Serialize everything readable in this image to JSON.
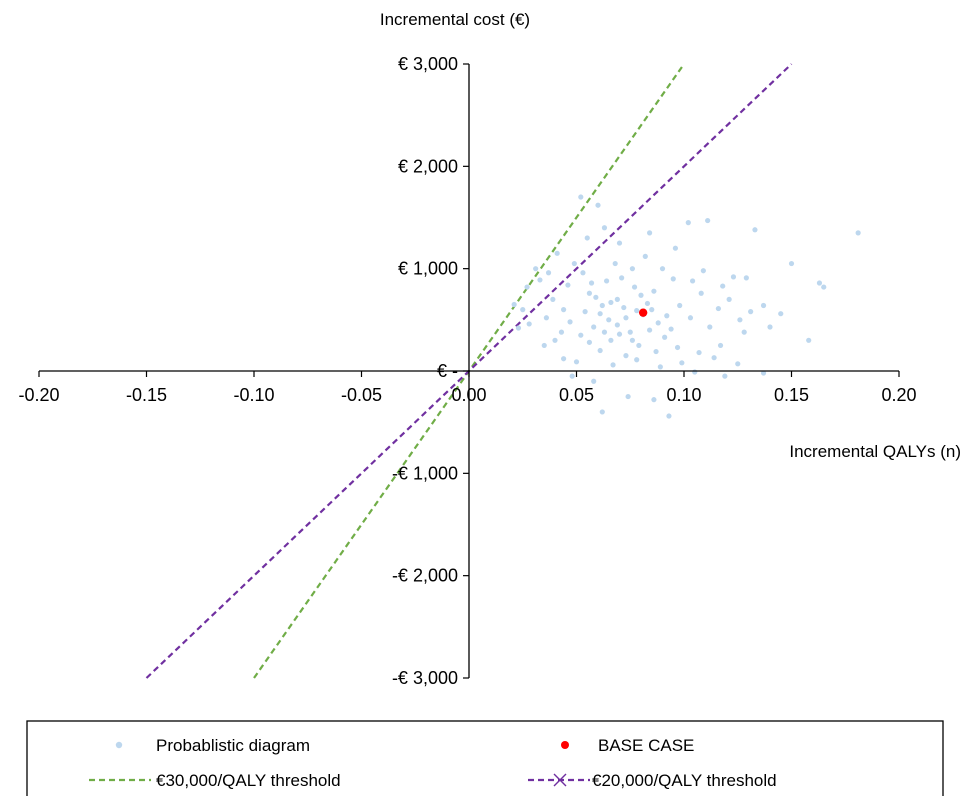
{
  "chart_data": {
    "type": "scatter",
    "xlabel": "Incremental QALYs (n)",
    "ylabel": "Incremental cost (€)",
    "xlim": [
      -0.2,
      0.2
    ],
    "ylim": [
      -3000,
      3000
    ],
    "x_ticks": [
      -0.2,
      -0.15,
      -0.1,
      -0.05,
      0.0,
      0.05,
      0.1,
      0.15,
      0.2
    ],
    "x_tick_labels": [
      "-0.20",
      "-0.15",
      "-0.10",
      "-0.05",
      "0.00",
      "0.05",
      "0.10",
      "0.15",
      "0.20"
    ],
    "y_ticks": [
      -3000,
      -2000,
      -1000,
      0,
      1000,
      2000,
      3000
    ],
    "y_tick_labels": [
      "-€ 3,000",
      "-€ 2,000",
      "-€ 1,000",
      "€ -",
      "€ 1,000",
      "€ 2,000",
      "€ 3,000"
    ],
    "grid": false,
    "legend_placement": "bottom",
    "series": [
      {
        "name": "Probablistic diagram",
        "kind": "scatter",
        "color": "#bdd7ee",
        "points": [
          [
            0.065,
            500
          ],
          [
            0.072,
            620
          ],
          [
            0.058,
            430
          ],
          [
            0.081,
            550
          ],
          [
            0.069,
            700
          ],
          [
            0.075,
            380
          ],
          [
            0.062,
            640
          ],
          [
            0.088,
            470
          ],
          [
            0.054,
            580
          ],
          [
            0.077,
            820
          ],
          [
            0.066,
            300
          ],
          [
            0.071,
            910
          ],
          [
            0.083,
            660
          ],
          [
            0.059,
            720
          ],
          [
            0.092,
            540
          ],
          [
            0.047,
            480
          ],
          [
            0.079,
            250
          ],
          [
            0.068,
            1050
          ],
          [
            0.061,
            200
          ],
          [
            0.086,
            780
          ],
          [
            0.073,
            150
          ],
          [
            0.057,
            860
          ],
          [
            0.094,
            410
          ],
          [
            0.052,
            350
          ],
          [
            0.098,
            640
          ],
          [
            0.044,
            600
          ],
          [
            0.103,
            520
          ],
          [
            0.039,
            700
          ],
          [
            0.108,
            760
          ],
          [
            0.036,
            520
          ],
          [
            0.112,
            430
          ],
          [
            0.033,
            890
          ],
          [
            0.116,
            610
          ],
          [
            0.028,
            460
          ],
          [
            0.121,
            700
          ],
          [
            0.025,
            600
          ],
          [
            0.126,
            500
          ],
          [
            0.031,
            1000
          ],
          [
            0.129,
            910
          ],
          [
            0.041,
            1150
          ],
          [
            0.096,
            1200
          ],
          [
            0.055,
            1300
          ],
          [
            0.084,
            1350
          ],
          [
            0.063,
            1400
          ],
          [
            0.102,
            1450
          ],
          [
            0.07,
            1250
          ],
          [
            0.049,
            1050
          ],
          [
            0.09,
            1000
          ],
          [
            0.06,
            1620
          ],
          [
            0.052,
            1700
          ],
          [
            0.111,
            1470
          ],
          [
            0.133,
            1380
          ],
          [
            0.15,
            1050
          ],
          [
            0.163,
            860
          ],
          [
            0.165,
            820
          ],
          [
            0.181,
            1350
          ],
          [
            0.158,
            300
          ],
          [
            0.145,
            560
          ],
          [
            0.14,
            430
          ],
          [
            0.137,
            640
          ],
          [
            0.048,
            -50
          ],
          [
            0.058,
            -100
          ],
          [
            0.062,
            -400
          ],
          [
            0.074,
            -250
          ],
          [
            0.086,
            -280
          ],
          [
            0.093,
            -440
          ],
          [
            0.105,
            -10
          ],
          [
            0.119,
            -50
          ],
          [
            0.137,
            -20
          ],
          [
            0.044,
            120
          ],
          [
            0.05,
            90
          ],
          [
            0.067,
            60
          ],
          [
            0.078,
            110
          ],
          [
            0.089,
            40
          ],
          [
            0.099,
            80
          ],
          [
            0.114,
            130
          ],
          [
            0.125,
            70
          ],
          [
            0.04,
            300
          ],
          [
            0.035,
            250
          ],
          [
            0.023,
            420
          ],
          [
            0.021,
            650
          ],
          [
            0.027,
            820
          ],
          [
            0.037,
            960
          ],
          [
            0.046,
            840
          ],
          [
            0.053,
            960
          ],
          [
            0.064,
            880
          ],
          [
            0.076,
            1000
          ],
          [
            0.082,
            1120
          ],
          [
            0.095,
            900
          ],
          [
            0.104,
            880
          ],
          [
            0.109,
            980
          ],
          [
            0.118,
            830
          ],
          [
            0.123,
            920
          ],
          [
            0.131,
            580
          ],
          [
            0.128,
            380
          ],
          [
            0.117,
            250
          ],
          [
            0.107,
            180
          ],
          [
            0.097,
            230
          ],
          [
            0.087,
            190
          ],
          [
            0.076,
            300
          ],
          [
            0.056,
            280
          ],
          [
            0.043,
            380
          ],
          [
            0.069,
            450
          ],
          [
            0.073,
            520
          ],
          [
            0.078,
            590
          ],
          [
            0.061,
            560
          ],
          [
            0.066,
            670
          ],
          [
            0.084,
            400
          ],
          [
            0.091,
            330
          ],
          [
            0.056,
            760
          ],
          [
            0.08,
            740
          ],
          [
            0.07,
            360
          ],
          [
            0.063,
            380
          ],
          [
            0.085,
            600
          ]
        ]
      },
      {
        "name": "BASE CASE",
        "kind": "scatter",
        "color": "#ff0000",
        "points": [
          [
            0.081,
            570
          ]
        ]
      },
      {
        "name": "€30,000/QALY threshold",
        "kind": "line",
        "color": "#70ad47",
        "dash": "dashed",
        "points": [
          [
            -0.1,
            -3000
          ],
          [
            0.1,
            3000
          ]
        ]
      },
      {
        "name": "€20,000/QALY threshold",
        "kind": "line",
        "color": "#7030a0",
        "dash": "dashed",
        "points": [
          [
            -0.15,
            -3000
          ],
          [
            0.15,
            3000
          ]
        ]
      }
    ]
  }
}
